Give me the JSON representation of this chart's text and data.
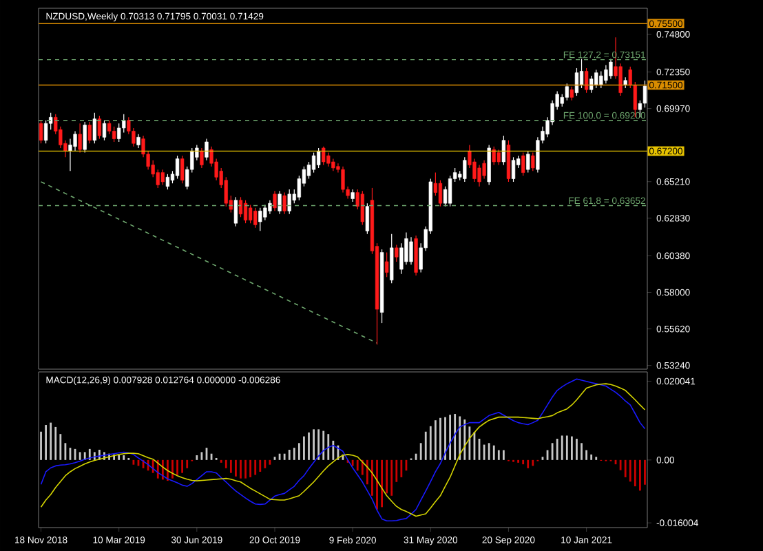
{
  "chart_data": [
    {
      "type": "candlestick",
      "title": "NZDUSD,Weekly 0.70313 0.71795 0.70031 0.71429",
      "tick_labels": "y",
      "categories": [
        null,
        null,
        null,
        null,
        null,
        null,
        null,
        null,
        null,
        null,
        null,
        null,
        null,
        null,
        null,
        null,
        null,
        null,
        null,
        null,
        null,
        null,
        null,
        null,
        null,
        null,
        null,
        null,
        null,
        null,
        null,
        null,
        null,
        null,
        null,
        null,
        null,
        null,
        null,
        null,
        null,
        null,
        null,
        null,
        null,
        null,
        null,
        null,
        null,
        null,
        null,
        null,
        null,
        null,
        null,
        null,
        null,
        null,
        null,
        null,
        null,
        null,
        null,
        null,
        null,
        null,
        null,
        null,
        null,
        null,
        null,
        null,
        null,
        null,
        null,
        null,
        null,
        null,
        null,
        null,
        null,
        null,
        null,
        null,
        null,
        null,
        null,
        null,
        null,
        null,
        null,
        null,
        null,
        null,
        null,
        null,
        null,
        null,
        null,
        null,
        null,
        null,
        null,
        null,
        null,
        null,
        null,
        null,
        null,
        null,
        null,
        null,
        null,
        null,
        null,
        null,
        null,
        null,
        null,
        null,
        null,
        null,
        null,
        null,
        null
      ],
      "ohlc": [
        [
          0.69,
          0.692,
          0.677,
          0.679
        ],
        [
          0.679,
          0.692,
          0.677,
          0.69
        ],
        [
          0.69,
          0.697,
          0.686,
          0.694
        ],
        [
          0.694,
          0.696,
          0.683,
          0.685
        ],
        [
          0.686,
          0.688,
          0.674,
          0.676
        ],
        [
          0.677,
          0.679,
          0.668,
          0.672
        ],
        [
          0.672,
          0.68,
          0.659,
          0.676
        ],
        [
          0.675,
          0.685,
          0.672,
          0.683
        ],
        [
          0.683,
          0.69,
          0.671,
          0.673
        ],
        [
          0.673,
          0.691,
          0.671,
          0.689
        ],
        [
          0.689,
          0.691,
          0.677,
          0.679
        ],
        [
          0.679,
          0.697,
          0.677,
          0.693
        ],
        [
          0.693,
          0.695,
          0.68,
          0.682
        ],
        [
          0.681,
          0.692,
          0.679,
          0.69
        ],
        [
          0.69,
          0.692,
          0.683,
          0.685
        ],
        [
          0.685,
          0.688,
          0.678,
          0.68
        ],
        [
          0.68,
          0.69,
          0.678,
          0.687
        ],
        [
          0.687,
          0.696,
          0.684,
          0.692
        ],
        [
          0.692,
          0.694,
          0.683,
          0.685
        ],
        [
          0.685,
          0.687,
          0.675,
          0.677
        ],
        [
          0.676,
          0.683,
          0.674,
          0.681
        ],
        [
          0.68,
          0.682,
          0.668,
          0.67
        ],
        [
          0.67,
          0.672,
          0.66,
          0.662
        ],
        [
          0.663,
          0.666,
          0.655,
          0.657
        ],
        [
          0.658,
          0.66,
          0.648,
          0.65
        ],
        [
          0.658,
          0.66,
          0.65,
          0.652
        ],
        [
          0.649,
          0.657,
          0.647,
          0.655
        ],
        [
          0.653,
          0.659,
          0.651,
          0.657
        ],
        [
          0.656,
          0.669,
          0.654,
          0.667
        ],
        [
          0.667,
          0.669,
          0.651,
          0.653
        ],
        [
          0.649,
          0.662,
          0.647,
          0.66
        ],
        [
          0.66,
          0.674,
          0.658,
          0.672
        ],
        [
          0.668,
          0.676,
          0.666,
          0.674
        ],
        [
          0.672,
          0.674,
          0.661,
          0.663
        ],
        [
          0.668,
          0.68,
          0.666,
          0.678
        ],
        [
          0.673,
          0.675,
          0.662,
          0.664
        ],
        [
          0.665,
          0.667,
          0.653,
          0.655
        ],
        [
          0.659,
          0.661,
          0.648,
          0.65
        ],
        [
          0.653,
          0.655,
          0.636,
          0.638
        ],
        [
          0.64,
          0.643,
          0.632,
          0.634
        ],
        [
          0.625,
          0.642,
          0.623,
          0.64
        ],
        [
          0.64,
          0.642,
          0.629,
          0.631
        ],
        [
          0.638,
          0.64,
          0.625,
          0.627
        ],
        [
          0.635,
          0.637,
          0.625,
          0.627
        ],
        [
          0.633,
          0.635,
          0.622,
          0.624
        ],
        [
          0.626,
          0.635,
          0.62,
          0.633
        ],
        [
          0.629,
          0.637,
          0.627,
          0.635
        ],
        [
          0.633,
          0.64,
          0.631,
          0.638
        ],
        [
          0.644,
          0.646,
          0.633,
          0.635
        ],
        [
          0.633,
          0.646,
          0.631,
          0.644
        ],
        [
          0.643,
          0.645,
          0.631,
          0.633
        ],
        [
          0.633,
          0.647,
          0.631,
          0.644
        ],
        [
          0.64,
          0.647,
          0.638,
          0.644
        ],
        [
          0.642,
          0.656,
          0.64,
          0.654
        ],
        [
          0.651,
          0.662,
          0.649,
          0.66
        ],
        [
          0.656,
          0.665,
          0.654,
          0.663
        ],
        [
          0.66,
          0.671,
          0.658,
          0.669
        ],
        [
          0.663,
          0.674,
          0.661,
          0.672
        ],
        [
          0.674,
          0.675,
          0.663,
          0.665
        ],
        [
          0.669,
          0.671,
          0.662,
          0.664
        ],
        [
          0.665,
          0.667,
          0.659,
          0.661
        ],
        [
          0.662,
          0.664,
          0.658,
          0.66
        ],
        [
          0.66,
          0.662,
          0.645,
          0.647
        ],
        [
          0.647,
          0.649,
          0.641,
          0.643
        ],
        [
          0.641,
          0.647,
          0.639,
          0.645
        ],
        [
          0.645,
          0.647,
          0.634,
          0.636
        ],
        [
          0.644,
          0.646,
          0.624,
          0.626
        ],
        [
          0.62,
          0.638,
          0.618,
          0.636
        ],
        [
          0.64,
          0.648,
          0.605,
          0.607
        ],
        [
          0.61,
          0.612,
          0.546,
          0.569
        ],
        [
          0.567,
          0.608,
          0.56,
          0.606
        ],
        [
          0.6,
          0.606,
          0.59,
          0.593
        ],
        [
          0.588,
          0.618,
          0.586,
          0.609
        ],
        [
          0.609,
          0.611,
          0.6,
          0.603
        ],
        [
          0.595,
          0.612,
          0.592,
          0.609
        ],
        [
          0.6,
          0.619,
          0.598,
          0.615
        ],
        [
          0.6,
          0.616,
          0.598,
          0.613
        ],
        [
          0.615,
          0.617,
          0.591,
          0.593
        ],
        [
          0.595,
          0.612,
          0.593,
          0.609
        ],
        [
          0.609,
          0.623,
          0.607,
          0.621
        ],
        [
          0.62,
          0.654,
          0.618,
          0.652
        ],
        [
          0.651,
          0.658,
          0.643,
          0.645
        ],
        [
          0.651,
          0.653,
          0.636,
          0.638
        ],
        [
          0.638,
          0.649,
          0.636,
          0.647
        ],
        [
          0.638,
          0.656,
          0.636,
          0.654
        ],
        [
          0.654,
          0.661,
          0.652,
          0.658
        ],
        [
          0.655,
          0.659,
          0.653,
          0.657
        ],
        [
          0.654,
          0.668,
          0.652,
          0.666
        ],
        [
          0.672,
          0.676,
          0.661,
          0.663
        ],
        [
          0.665,
          0.667,
          0.652,
          0.654
        ],
        [
          0.661,
          0.663,
          0.649,
          0.652
        ],
        [
          0.664,
          0.666,
          0.654,
          0.656
        ],
        [
          0.652,
          0.676,
          0.65,
          0.674
        ],
        [
          0.673,
          0.675,
          0.663,
          0.665
        ],
        [
          0.671,
          0.673,
          0.663,
          0.665
        ],
        [
          0.665,
          0.682,
          0.663,
          0.679
        ],
        [
          0.676,
          0.679,
          0.652,
          0.654
        ],
        [
          0.654,
          0.668,
          0.652,
          0.666
        ],
        [
          0.663,
          0.669,
          0.661,
          0.667
        ],
        [
          0.669,
          0.671,
          0.656,
          0.658
        ],
        [
          0.66,
          0.672,
          0.658,
          0.67
        ],
        [
          0.669,
          0.671,
          0.659,
          0.661
        ],
        [
          0.66,
          0.681,
          0.658,
          0.679
        ],
        [
          0.679,
          0.688,
          0.677,
          0.685
        ],
        [
          0.683,
          0.694,
          0.681,
          0.692
        ],
        [
          0.691,
          0.705,
          0.689,
          0.703
        ],
        [
          0.701,
          0.711,
          0.699,
          0.709
        ],
        [
          0.703,
          0.709,
          0.701,
          0.707
        ],
        [
          0.707,
          0.716,
          0.705,
          0.714
        ],
        [
          0.712,
          0.714,
          0.705,
          0.707
        ],
        [
          0.71,
          0.726,
          0.708,
          0.723
        ],
        [
          0.715,
          0.732,
          0.713,
          0.724
        ],
        [
          0.724,
          0.726,
          0.71,
          0.712
        ],
        [
          0.712,
          0.721,
          0.71,
          0.719
        ],
        [
          0.715,
          0.725,
          0.713,
          0.723
        ],
        [
          0.715,
          0.724,
          0.713,
          0.721
        ],
        [
          0.718,
          0.728,
          0.716,
          0.725
        ],
        [
          0.721,
          0.732,
          0.719,
          0.73
        ],
        [
          0.727,
          0.746,
          0.719,
          0.721
        ],
        [
          0.727,
          0.729,
          0.708,
          0.71
        ],
        [
          0.715,
          0.72,
          0.713,
          0.718
        ],
        [
          0.725,
          0.727,
          0.713,
          0.715
        ],
        [
          0.715,
          0.717,
          0.694,
          0.699
        ],
        [
          0.699,
          0.705,
          0.694,
          0.703
        ],
        [
          0.70313,
          0.71795,
          0.70031,
          0.71429
        ]
      ],
      "series": [
        {
          "type": "line",
          "color": "#6fa86f",
          "line_style": "dashed",
          "values": [
            0.652,
            null,
            null,
            null,
            null,
            null,
            null,
            null,
            null,
            null,
            null,
            null,
            null,
            null,
            null,
            null,
            null,
            null,
            null,
            null,
            null,
            null,
            null,
            null,
            null,
            null,
            null,
            null,
            null,
            null,
            null,
            null,
            null,
            null,
            null,
            null,
            null,
            null,
            null,
            null,
            null,
            null,
            null,
            null,
            null,
            null,
            null,
            null,
            null,
            null,
            null,
            null,
            null,
            null,
            null,
            null,
            null,
            null,
            null,
            null,
            null,
            null,
            null,
            null,
            null,
            null,
            null,
            null,
            null,
            0.547,
            null,
            null,
            null,
            null,
            null,
            null,
            null,
            null,
            null,
            null,
            null,
            null,
            null,
            null,
            null,
            null,
            null,
            null,
            null,
            null,
            null,
            null,
            null,
            null,
            null,
            null,
            null,
            null,
            null,
            null,
            null,
            null,
            null,
            null,
            null,
            null,
            null,
            null,
            null,
            null,
            null,
            null,
            null,
            null,
            null,
            null,
            null,
            null,
            null,
            null,
            null,
            null,
            null,
            null,
            null
          ]
        }
      ],
      "ylim": [
        0.53,
        0.765
      ],
      "yticks": [
        {
          "value": 0.748,
          "label": "0.74800"
        },
        {
          "value": 0.7235,
          "label": "0.72350"
        },
        {
          "value": 0.6997,
          "label": "0.69970"
        },
        {
          "value": 0.6521,
          "label": "0.65210"
        },
        {
          "value": 0.6283,
          "label": "0.62830"
        },
        {
          "value": 0.6038,
          "label": "0.60380"
        },
        {
          "value": 0.58,
          "label": "0.58000"
        },
        {
          "value": 0.5562,
          "label": "0.55620"
        },
        {
          "value": 0.5324,
          "label": "0.53240"
        }
      ],
      "ref_lines": [
        {
          "axis": "y",
          "value": 0.755,
          "label": "0.75500",
          "color": "#d98c00",
          "line_style": "solid"
        },
        {
          "axis": "y",
          "value": 0.73151,
          "label": "FE 127.2 = 0.73151",
          "color": "#6fa86f",
          "line_style": "dashed"
        },
        {
          "axis": "y",
          "value": 0.715,
          "label": "0.71500",
          "color": "#d98c00",
          "line_style": "solid"
        },
        {
          "axis": "y",
          "value": 0.692,
          "label": "FE 100.0 = 0.69200",
          "color": "#6fa86f",
          "line_style": "dashed"
        },
        {
          "axis": "y",
          "value": 0.672,
          "label": "0.67200",
          "color": "#e6c200",
          "line_style": "solid"
        },
        {
          "axis": "y",
          "value": 0.63652,
          "label": "FE 61.8 = 0.63652",
          "color": "#6fa86f",
          "line_style": "dashed"
        }
      ]
    },
    {
      "type": "bar",
      "title": "MACD(12,26,9) 0.007928 0.012764 0.000000 -0.006286",
      "categories": [
        "18 Nov 2018",
        null,
        null,
        null,
        null,
        null,
        null,
        null,
        null,
        null,
        null,
        null,
        null,
        null,
        null,
        null,
        "10 Mar 2019",
        null,
        null,
        null,
        null,
        null,
        null,
        null,
        null,
        null,
        null,
        null,
        null,
        null,
        null,
        null,
        "30 Jun 2019",
        null,
        null,
        null,
        null,
        null,
        null,
        null,
        null,
        null,
        null,
        null,
        null,
        null,
        null,
        null,
        "20 Oct 2019",
        null,
        null,
        null,
        null,
        null,
        null,
        null,
        null,
        null,
        null,
        null,
        null,
        null,
        null,
        null,
        "9 Feb 2020",
        null,
        null,
        null,
        null,
        null,
        null,
        null,
        null,
        null,
        null,
        null,
        null,
        null,
        null,
        null,
        "31 May 2020",
        null,
        null,
        null,
        null,
        null,
        null,
        null,
        null,
        null,
        null,
        null,
        null,
        null,
        null,
        null,
        "20 Sep 2020",
        null,
        null,
        null,
        null,
        null,
        null,
        null,
        null,
        null,
        null,
        null,
        null,
        null,
        null,
        null,
        "10 Jan 2021",
        null,
        null,
        null,
        null,
        null,
        null,
        null,
        null,
        null,
        null,
        null,
        null
      ],
      "ylim": [
        -0.0172,
        0.0224
      ],
      "yticks": [
        {
          "value": 0.020041,
          "label": "0.020041"
        },
        {
          "value": 0,
          "label": "0.00"
        },
        {
          "value": -0.016004,
          "label": "-0.016004"
        }
      ],
      "series": [
        {
          "type": "bar",
          "values": [
            0.0072,
            0.0089,
            0.0095,
            0.0084,
            0.0066,
            0.0043,
            0.0031,
            0.0028,
            0.002,
            0.002,
            0.0028,
            0.002,
            0.0026,
            0.002,
            0.0016,
            0.0014,
            0.0012,
            0.0012,
            0.0005,
            -0.0012,
            -0.0015,
            -0.0021,
            -0.0027,
            -0.0033,
            -0.0047,
            -0.005,
            -0.0053,
            -0.0047,
            -0.0038,
            -0.0033,
            -0.0021,
            -0.0003,
            0.0012,
            0.002,
            0.0031,
            0.0016,
            0.0005,
            -0.0007,
            -0.0021,
            -0.0033,
            -0.0042,
            -0.0047,
            -0.0047,
            -0.0044,
            -0.0038,
            -0.003,
            -0.0021,
            -0.0012,
            0.0008,
            0.0016,
            0.0016,
            0.0026,
            0.0031,
            0.0043,
            0.006,
            0.007,
            0.0078,
            0.0078,
            0.0074,
            0.0066,
            0.0049,
            0.0037,
            0.0014,
            -0.0007,
            -0.0015,
            -0.0027,
            -0.0038,
            -0.0062,
            -0.0091,
            -0.0126,
            -0.012,
            -0.0085,
            -0.0091,
            -0.0056,
            -0.0044,
            -0.0027,
            0.0004,
            0.0016,
            0.0043,
            0.0072,
            0.0086,
            0.0101,
            0.0107,
            0.0109,
            0.0115,
            0.0117,
            0.0111,
            0.0103,
            0.0085,
            0.0071,
            0.0054,
            0.0039,
            0.0043,
            0.0037,
            0.0025,
            0.0025,
            -0.0003,
            -0.0005,
            -0.0007,
            -0.0011,
            -0.0021,
            -0.0015,
            -0.0003,
            0.0008,
            0.0025,
            0.0043,
            0.0054,
            0.0062,
            0.0062,
            0.006,
            0.0054,
            0.0043,
            0.0025,
            0.0014,
            0.0008,
            -0.0002,
            -0.0003,
            -0.0003,
            -0.0011,
            -0.0026,
            -0.0044,
            -0.0055,
            -0.0067,
            -0.0078,
            -0.006286
          ],
          "colors": [
            "#c8c8c8",
            "#c8c8c8",
            "#c8c8c8",
            "#c8c8c8",
            "#c8c8c8",
            "#c8c8c8",
            "#c8c8c8",
            "#c8c8c8",
            "#c8c8c8",
            "#c8c8c8",
            "#c8c8c8",
            "#c8c8c8",
            "#c8c8c8",
            "#c8c8c8",
            "#c8c8c8",
            "#c8c8c8",
            "#c8c8c8",
            "#c8c8c8",
            "#c8c8c8",
            "#cc0000",
            "#cc0000",
            "#cc0000",
            "#cc0000",
            "#cc0000",
            "#cc0000",
            "#cc0000",
            "#cc0000",
            "#cc0000",
            "#cc0000",
            "#cc0000",
            "#cc0000",
            "#cc0000",
            "#c8c8c8",
            "#c8c8c8",
            "#c8c8c8",
            "#c8c8c8",
            "#c8c8c8",
            "#cc0000",
            "#cc0000",
            "#cc0000",
            "#cc0000",
            "#cc0000",
            "#cc0000",
            "#cc0000",
            "#cc0000",
            "#cc0000",
            "#cc0000",
            "#cc0000",
            "#c8c8c8",
            "#c8c8c8",
            "#c8c8c8",
            "#c8c8c8",
            "#c8c8c8",
            "#c8c8c8",
            "#c8c8c8",
            "#c8c8c8",
            "#c8c8c8",
            "#c8c8c8",
            "#c8c8c8",
            "#c8c8c8",
            "#c8c8c8",
            "#c8c8c8",
            "#c8c8c8",
            "#cc0000",
            "#cc0000",
            "#cc0000",
            "#cc0000",
            "#cc0000",
            "#cc0000",
            "#cc0000",
            "#cc0000",
            "#cc0000",
            "#cc0000",
            "#cc0000",
            "#cc0000",
            "#cc0000",
            "#c8c8c8",
            "#c8c8c8",
            "#c8c8c8",
            "#c8c8c8",
            "#c8c8c8",
            "#c8c8c8",
            "#c8c8c8",
            "#c8c8c8",
            "#c8c8c8",
            "#c8c8c8",
            "#c8c8c8",
            "#c8c8c8",
            "#c8c8c8",
            "#c8c8c8",
            "#c8c8c8",
            "#c8c8c8",
            "#c8c8c8",
            "#c8c8c8",
            "#c8c8c8",
            "#c8c8c8",
            "#cc0000",
            "#cc0000",
            "#cc0000",
            "#cc0000",
            "#cc0000",
            "#cc0000",
            "#cc0000",
            "#c8c8c8",
            "#c8c8c8",
            "#c8c8c8",
            "#c8c8c8",
            "#c8c8c8",
            "#c8c8c8",
            "#c8c8c8",
            "#c8c8c8",
            "#c8c8c8",
            "#c8c8c8",
            "#c8c8c8",
            "#c8c8c8",
            "#cc0000",
            "#cc0000",
            "#cc0000",
            "#cc0000",
            "#cc0000",
            "#cc0000",
            "#cc0000",
            "#cc0000",
            "#cc0000",
            "#cc0000"
          ]
        },
        {
          "type": "line",
          "color": "#1a1aff",
          "values": [
            -0.0062,
            -0.003,
            -0.002,
            -0.0015,
            -0.0013,
            -0.0012,
            -0.001,
            -0.0007,
            -0.0003,
            0.0002,
            0.0005,
            0.0008,
            0.001,
            0.0012,
            0.0014,
            0.0016,
            0.0018,
            0.002,
            0.0018,
            0.0014,
            0.0005,
            -0.0003,
            -0.0012,
            -0.0022,
            -0.0032,
            -0.004,
            -0.0048,
            -0.0053,
            -0.0058,
            -0.0064,
            -0.0067,
            -0.006,
            -0.005,
            -0.004,
            -0.003,
            -0.003,
            -0.0033,
            -0.0045,
            -0.0056,
            -0.0068,
            -0.0079,
            -0.0088,
            -0.0097,
            -0.0105,
            -0.0112,
            -0.0113,
            -0.0112,
            -0.0102,
            -0.0092,
            -0.0088,
            -0.0085,
            -0.0076,
            -0.0067,
            -0.0052,
            -0.004,
            -0.0022,
            -0.0006,
            0.001,
            0.0024,
            0.0032,
            0.0037,
            0.003,
            0.0022,
            0.0,
            -0.002,
            -0.0038,
            -0.0056,
            -0.0078,
            -0.01,
            -0.0128,
            -0.015,
            -0.0155,
            -0.0155,
            -0.0154,
            -0.0151,
            -0.0149,
            -0.0138,
            -0.0126,
            -0.0102,
            -0.0079,
            -0.0055,
            -0.003,
            -0.0009,
            0.0018,
            0.0043,
            0.0065,
            0.0084,
            0.009,
            0.0095,
            0.0095,
            0.0095,
            0.0104,
            0.0113,
            0.0117,
            0.0121,
            0.0114,
            0.0107,
            0.01,
            0.0095,
            0.0092,
            0.009,
            0.0095,
            0.0101,
            0.012,
            0.014,
            0.016,
            0.0177,
            0.0186,
            0.0194,
            0.02,
            0.0206,
            0.0203,
            0.02,
            0.0197,
            0.0194,
            0.0191,
            0.0188,
            0.018,
            0.0172,
            0.0162,
            0.015,
            0.014,
            0.0118,
            0.0095,
            0.007928
          ]
        },
        {
          "type": "line",
          "color": "#d4d400",
          "values": [
            -0.012,
            -0.0102,
            -0.0088,
            -0.007,
            -0.0055,
            -0.004,
            -0.003,
            -0.0022,
            -0.0016,
            -0.001,
            -0.0005,
            -0.0001,
            0.0002,
            0.0005,
            0.0008,
            0.0011,
            0.0014,
            0.0016,
            0.0017,
            0.0017,
            0.0016,
            0.0011,
            0.0006,
            0.0002,
            -0.0008,
            -0.0018,
            -0.0027,
            -0.0034,
            -0.004,
            -0.0045,
            -0.0049,
            -0.0052,
            -0.0053,
            -0.0052,
            -0.0051,
            -0.005,
            -0.0049,
            -0.0048,
            -0.0047,
            -0.0049,
            -0.0053,
            -0.0056,
            -0.0064,
            -0.0072,
            -0.0079,
            -0.0086,
            -0.0093,
            -0.01,
            -0.0101,
            -0.0102,
            -0.0102,
            -0.0099,
            -0.0095,
            -0.0091,
            -0.008,
            -0.0068,
            -0.0056,
            -0.0042,
            -0.0028,
            -0.0015,
            -0.0005,
            0.0005,
            0.0012,
            0.0014,
            0.0012,
            0.0008,
            -0.0005,
            -0.0018,
            -0.0033,
            -0.0052,
            -0.0072,
            -0.0091,
            -0.0105,
            -0.0118,
            -0.0126,
            -0.0131,
            -0.0137,
            -0.0143,
            -0.014,
            -0.0137,
            -0.0122,
            -0.0106,
            -0.0091,
            -0.0067,
            -0.0044,
            -0.0015,
            0.0014,
            0.0035,
            0.0055,
            0.007,
            0.0084,
            0.0093,
            0.0101,
            0.0105,
            0.0109,
            0.0109,
            0.0109,
            0.0109,
            0.0109,
            0.0108,
            0.0107,
            0.0106,
            0.0105,
            0.0108,
            0.011,
            0.0113,
            0.012,
            0.0125,
            0.013,
            0.014,
            0.0153,
            0.0168,
            0.0183,
            0.0187,
            0.0191,
            0.0193,
            0.0194,
            0.0192,
            0.0188,
            0.0183,
            0.0177,
            0.0165,
            0.0153,
            0.014,
            0.012764
          ]
        }
      ]
    }
  ]
}
